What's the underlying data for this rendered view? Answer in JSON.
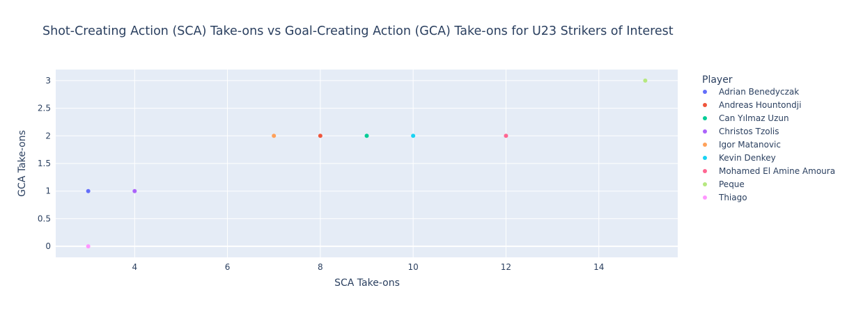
{
  "chart_data": {
    "type": "scatter",
    "title": "Shot-Creating Action (SCA) Take-ons vs Goal-Creating Action (GCA) Take-ons for U23 Strikers of Interest",
    "xlabel": "SCA Take-ons",
    "ylabel": "GCA Take-ons",
    "xlim": [
      2.3,
      15.7
    ],
    "ylim": [
      -0.2,
      3.2
    ],
    "xticks": [
      4,
      6,
      8,
      10,
      12,
      14
    ],
    "yticks": [
      0,
      0.5,
      1,
      1.5,
      2,
      2.5,
      3
    ],
    "grid": true,
    "legend_title": "Player",
    "legend_position": "right",
    "plot_bg": "#e5ecf6",
    "series": [
      {
        "name": "Adrian Benedyczak",
        "color": "#636efa",
        "x": [
          3
        ],
        "y": [
          1
        ]
      },
      {
        "name": "Andreas Hountondji",
        "color": "#EF553B",
        "x": [
          8
        ],
        "y": [
          2
        ]
      },
      {
        "name": "Can Yılmaz Uzun",
        "color": "#00cc96",
        "x": [
          9
        ],
        "y": [
          2
        ]
      },
      {
        "name": "Christos Tzolis",
        "color": "#ab63fa",
        "x": [
          4
        ],
        "y": [
          1
        ]
      },
      {
        "name": "Igor Matanovic",
        "color": "#FFA15A",
        "x": [
          7
        ],
        "y": [
          2
        ]
      },
      {
        "name": "Kevin Denkey",
        "color": "#19d3f3",
        "x": [
          10
        ],
        "y": [
          2
        ]
      },
      {
        "name": "Mohamed El Amine Amoura",
        "color": "#FF6692",
        "x": [
          12
        ],
        "y": [
          2
        ]
      },
      {
        "name": "Peque",
        "color": "#B6E880",
        "x": [
          15
        ],
        "y": [
          3
        ]
      },
      {
        "name": "Thiago",
        "color": "#FF97FF",
        "x": [
          3
        ],
        "y": [
          0
        ]
      }
    ]
  }
}
